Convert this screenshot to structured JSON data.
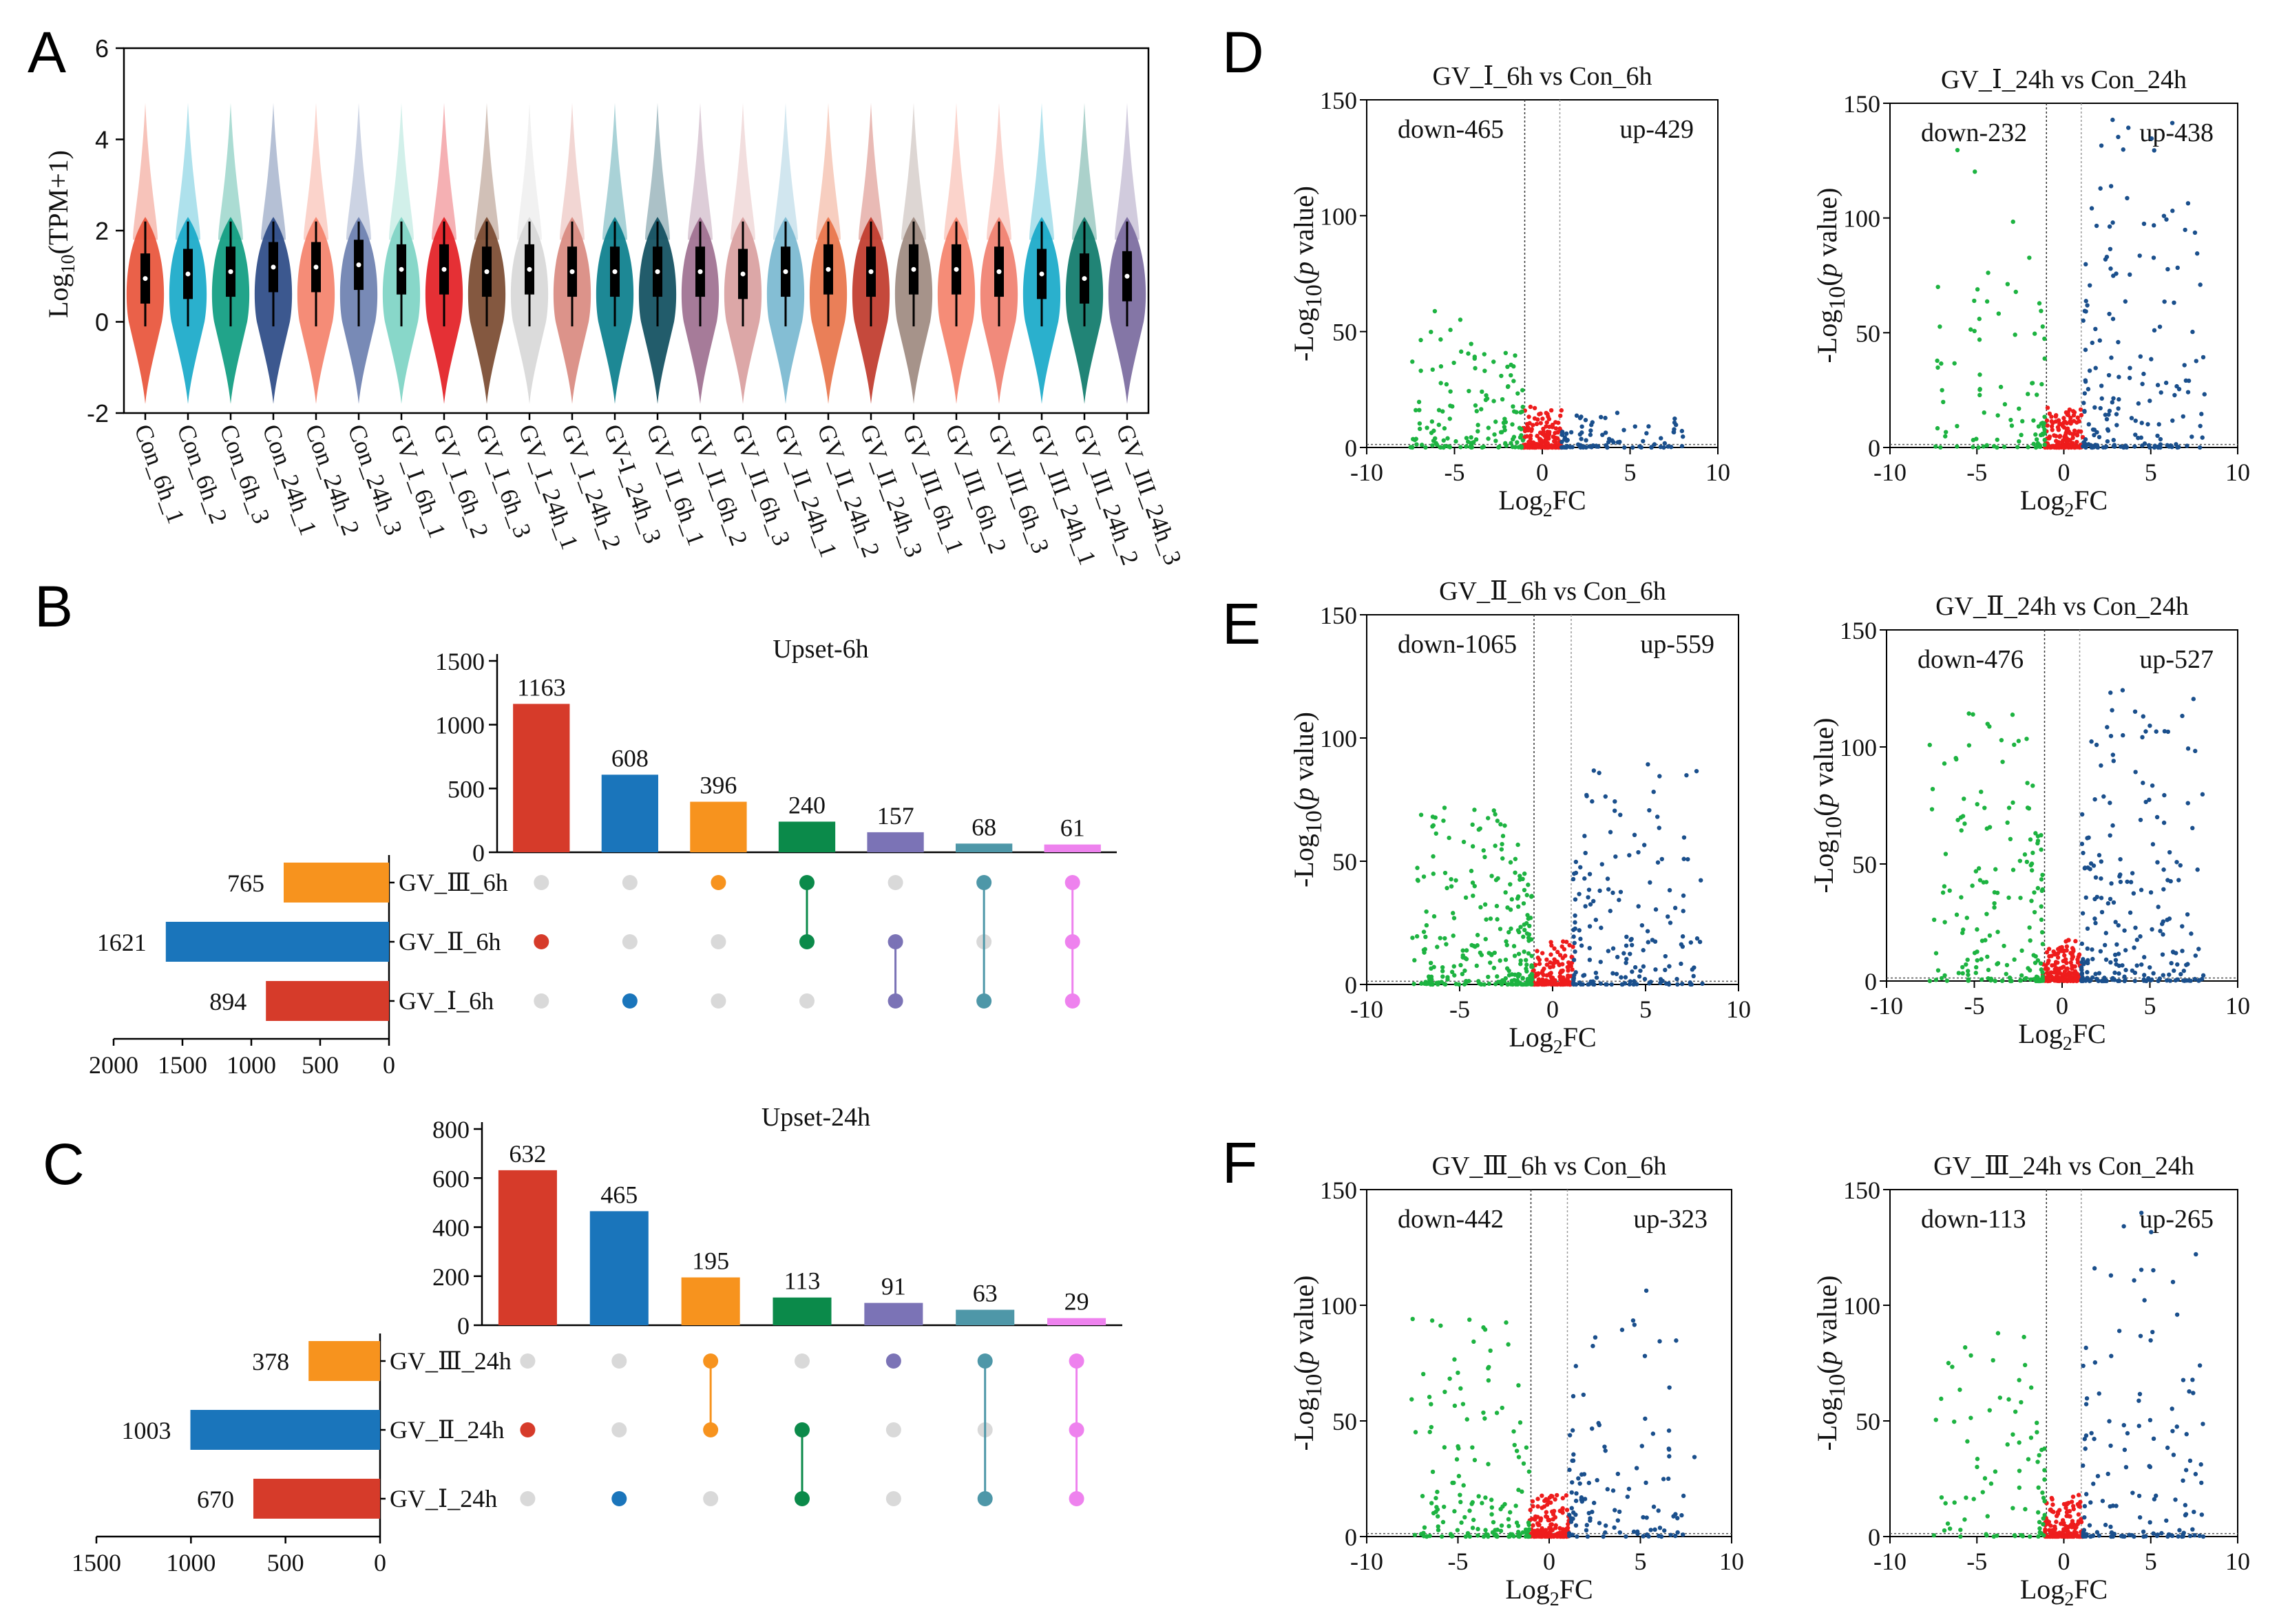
{
  "panels": {
    "A": "A",
    "B": "B",
    "C": "C",
    "D": "D",
    "E": "E",
    "F": "F"
  },
  "chart_data": [
    {
      "id": "A",
      "type": "violin",
      "ylabel": "Log10(TPM+1)",
      "ylabel_parts": [
        "Log",
        "10",
        "(TPM+1)"
      ],
      "ylim": [
        -2,
        6
      ],
      "yticks": [
        "-2",
        "0",
        "2",
        "4",
        "6"
      ],
      "categories": [
        "Con_6h_1",
        "Con_6h_2",
        "Con_6h_3",
        "Con_24h_1",
        "Con_24h_2",
        "Con_24h_3",
        "GV_I_6h_1",
        "GV_I_6h_2",
        "GV_I_6h_3",
        "GV_I_24h_1",
        "GV_I_24h_2",
        "GV-I_24h_3",
        "GV_II_6h_1",
        "GV_II_6h_2",
        "GV_II_6h_3",
        "GV_II_24h_1",
        "GV_II_24h_2",
        "GV_II_24h_3",
        "GV_III_6h_1",
        "GV_III_6h_2",
        "GV_III_6h_3",
        "GV_III_24h_1",
        "GV_III_24h_2",
        "GV_III_24h_3"
      ],
      "medians": [
        0.95,
        1.05,
        1.1,
        1.2,
        1.2,
        1.25,
        1.15,
        1.15,
        1.1,
        1.15,
        1.1,
        1.1,
        1.1,
        1.1,
        1.05,
        1.1,
        1.15,
        1.1,
        1.15,
        1.15,
        1.1,
        1.05,
        0.95,
        1.0
      ],
      "colors": [
        "#e8543a",
        "#18a9c9",
        "#0e9c80",
        "#2b4a86",
        "#f4826b",
        "#6d80b0",
        "#7ed4c4",
        "#e31e24",
        "#7a4a30",
        "#d8d8d8",
        "#d98a80",
        "#0a7e8c",
        "#0f4e5e",
        "#9e7090",
        "#d9a0a0",
        "#7ab8d0",
        "#e8744a",
        "#c0392b",
        "#9e8a80",
        "#f4826b",
        "#f08070",
        "#18a9c9",
        "#0e7a6a",
        "#7a6a9e"
      ]
    },
    {
      "id": "B",
      "type": "upset",
      "title": "Upset-6h",
      "yticks": [
        "0",
        "500",
        "1000",
        "1500"
      ],
      "ymax": 1500,
      "intersections": [
        1163,
        608,
        396,
        240,
        157,
        68,
        61
      ],
      "intersection_labels": [
        "1163",
        "608",
        "396",
        "240",
        "157",
        "68",
        "61"
      ],
      "colors": [
        "#d63b2a",
        "#1a75bb",
        "#f7931e",
        "#0b8a4a",
        "#7b73b6",
        "#4e97a8",
        "#ee82ee"
      ],
      "sets": [
        "GV_Ⅲ_6h",
        "GV_Ⅱ_6h",
        "GV_Ⅰ_6h"
      ],
      "set_sizes": [
        765,
        1621,
        894
      ],
      "set_size_labels": [
        "765",
        "1621",
        "894"
      ],
      "set_colors": [
        "#f7931e",
        "#1a75bb",
        "#d63b2a"
      ],
      "set_ticks": [
        "2000",
        "1500",
        "1000",
        "500",
        "0"
      ],
      "set_max": 2000,
      "matrix": [
        [
          0,
          1,
          0
        ],
        [
          0,
          0,
          1
        ],
        [
          1,
          0,
          0
        ],
        [
          1,
          1,
          0
        ],
        [
          0,
          1,
          1
        ],
        [
          1,
          0,
          1
        ],
        [
          1,
          1,
          1
        ]
      ]
    },
    {
      "id": "C",
      "type": "upset",
      "title": "Upset-24h",
      "yticks": [
        "0",
        "200",
        "400",
        "600",
        "800"
      ],
      "ymax": 800,
      "intersections": [
        632,
        465,
        195,
        113,
        91,
        63,
        29
      ],
      "intersection_labels": [
        "632",
        "465",
        "195",
        "113",
        "91",
        "63",
        "29"
      ],
      "colors": [
        "#d63b2a",
        "#1a75bb",
        "#f7931e",
        "#0b8a4a",
        "#7b73b6",
        "#4e97a8",
        "#ee82ee"
      ],
      "sets": [
        "GV_Ⅲ_24h",
        "GV_Ⅱ_24h",
        "GV_Ⅰ_24h"
      ],
      "set_sizes": [
        378,
        1003,
        670
      ],
      "set_size_labels": [
        "378",
        "1003",
        "670"
      ],
      "set_colors": [
        "#f7931e",
        "#1a75bb",
        "#d63b2a"
      ],
      "set_ticks": [
        "1500",
        "1000",
        "500",
        "0"
      ],
      "set_max": 1500,
      "matrix": [
        [
          0,
          1,
          0
        ],
        [
          0,
          0,
          1
        ],
        [
          1,
          1,
          0
        ],
        [
          0,
          1,
          1
        ],
        [
          1,
          0,
          0
        ],
        [
          1,
          0,
          1
        ],
        [
          1,
          1,
          1
        ]
      ]
    },
    {
      "id": "D",
      "type": "volcano",
      "subplots": [
        {
          "title": "GV_Ⅰ_6h vs Con_6h",
          "down": "down-465",
          "up": "up-429",
          "xlim": [
            -10,
            10
          ],
          "ylim": [
            0,
            150
          ],
          "seed": 11,
          "ndown": 140,
          "nup": 90,
          "maxdown": 60,
          "maxup": 15
        },
        {
          "title": "GV_Ⅰ_24h vs Con_24h",
          "down": "down-232",
          "up": "up-438",
          "xlim": [
            -10,
            10
          ],
          "ylim": [
            0,
            150
          ],
          "seed": 23,
          "ndown": 90,
          "nup": 180,
          "maxdown": 130,
          "maxup": 145
        }
      ]
    },
    {
      "id": "E",
      "type": "volcano",
      "subplots": [
        {
          "title": "GV_Ⅱ_6h vs Con_6h",
          "down": "down-1065",
          "up": "up-559",
          "xlim": [
            -10,
            10
          ],
          "ylim": [
            0,
            150
          ],
          "seed": 37,
          "ndown": 260,
          "nup": 170,
          "maxdown": 75,
          "maxup": 90
        },
        {
          "title": "GV_Ⅱ_24h vs Con_24h",
          "down": "down-476",
          "up": "up-527",
          "xlim": [
            -10,
            10
          ],
          "ylim": [
            0,
            150
          ],
          "seed": 41,
          "ndown": 170,
          "nup": 220,
          "maxdown": 115,
          "maxup": 125
        }
      ]
    },
    {
      "id": "F",
      "type": "volcano",
      "subplots": [
        {
          "title": "GV_Ⅲ_6h vs Con_6h",
          "down": "down-442",
          "up": "up-323",
          "xlim": [
            -10,
            10
          ],
          "ylim": [
            0,
            150
          ],
          "seed": 53,
          "ndown": 150,
          "nup": 110,
          "maxdown": 95,
          "maxup": 110
        },
        {
          "title": "GV_Ⅲ_24h vs Con_24h",
          "down": "down-113",
          "up": "up-265",
          "xlim": [
            -10,
            10
          ],
          "ylim": [
            0,
            150
          ],
          "seed": 67,
          "ndown": 80,
          "nup": 140,
          "maxdown": 90,
          "maxup": 140
        }
      ]
    }
  ],
  "volcano_axes": {
    "xticks": [
      "-10",
      "-5",
      "0",
      "5",
      "10"
    ],
    "yticks": [
      "0",
      "50",
      "100",
      "150"
    ],
    "xlabel_parts": [
      "Log",
      "2",
      "FC"
    ],
    "ylabel_parts": [
      "-Log",
      "10",
      "(",
      "p",
      " value)"
    ]
  },
  "colors": {
    "down": "#1db341",
    "mid": "#ee1c1c",
    "up": "#1a4f8c",
    "axis": "#222222",
    "dot": "#d9d9d9"
  }
}
